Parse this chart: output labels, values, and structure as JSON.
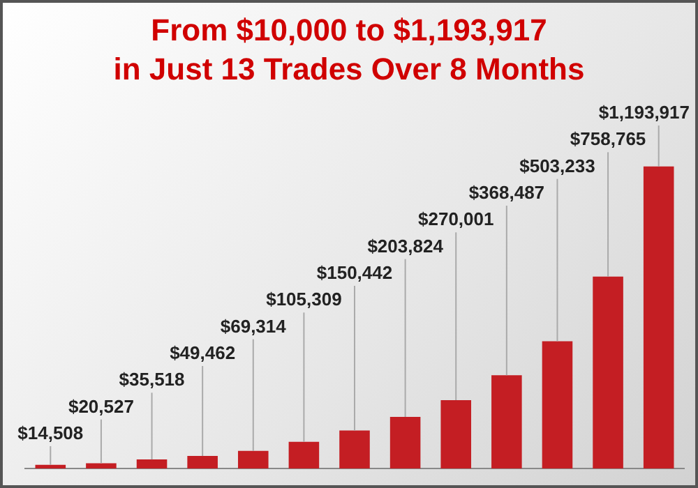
{
  "chart_data": {
    "type": "bar",
    "title": "From $10,000 to $1,193,917\nin Just 13 Trades Over 8 Months",
    "categories": [
      null,
      null,
      null,
      null,
      null,
      null,
      null,
      null,
      null,
      null,
      null,
      null,
      null
    ],
    "values": [
      14508,
      20527,
      35518,
      49462,
      69314,
      105309,
      150442,
      203824,
      270001,
      368487,
      503233,
      758765,
      1193917
    ],
    "value_labels": [
      "$14,508",
      "$20,527",
      "$35,518",
      "$49,462",
      "$69,314",
      "$105,309",
      "$150,442",
      "$203,824",
      "$270,001",
      "$368,487",
      "$503,233",
      "$758,765",
      "$1,193,917"
    ],
    "color": "#c41e23",
    "legend": false,
    "tick_labels": false
  }
}
